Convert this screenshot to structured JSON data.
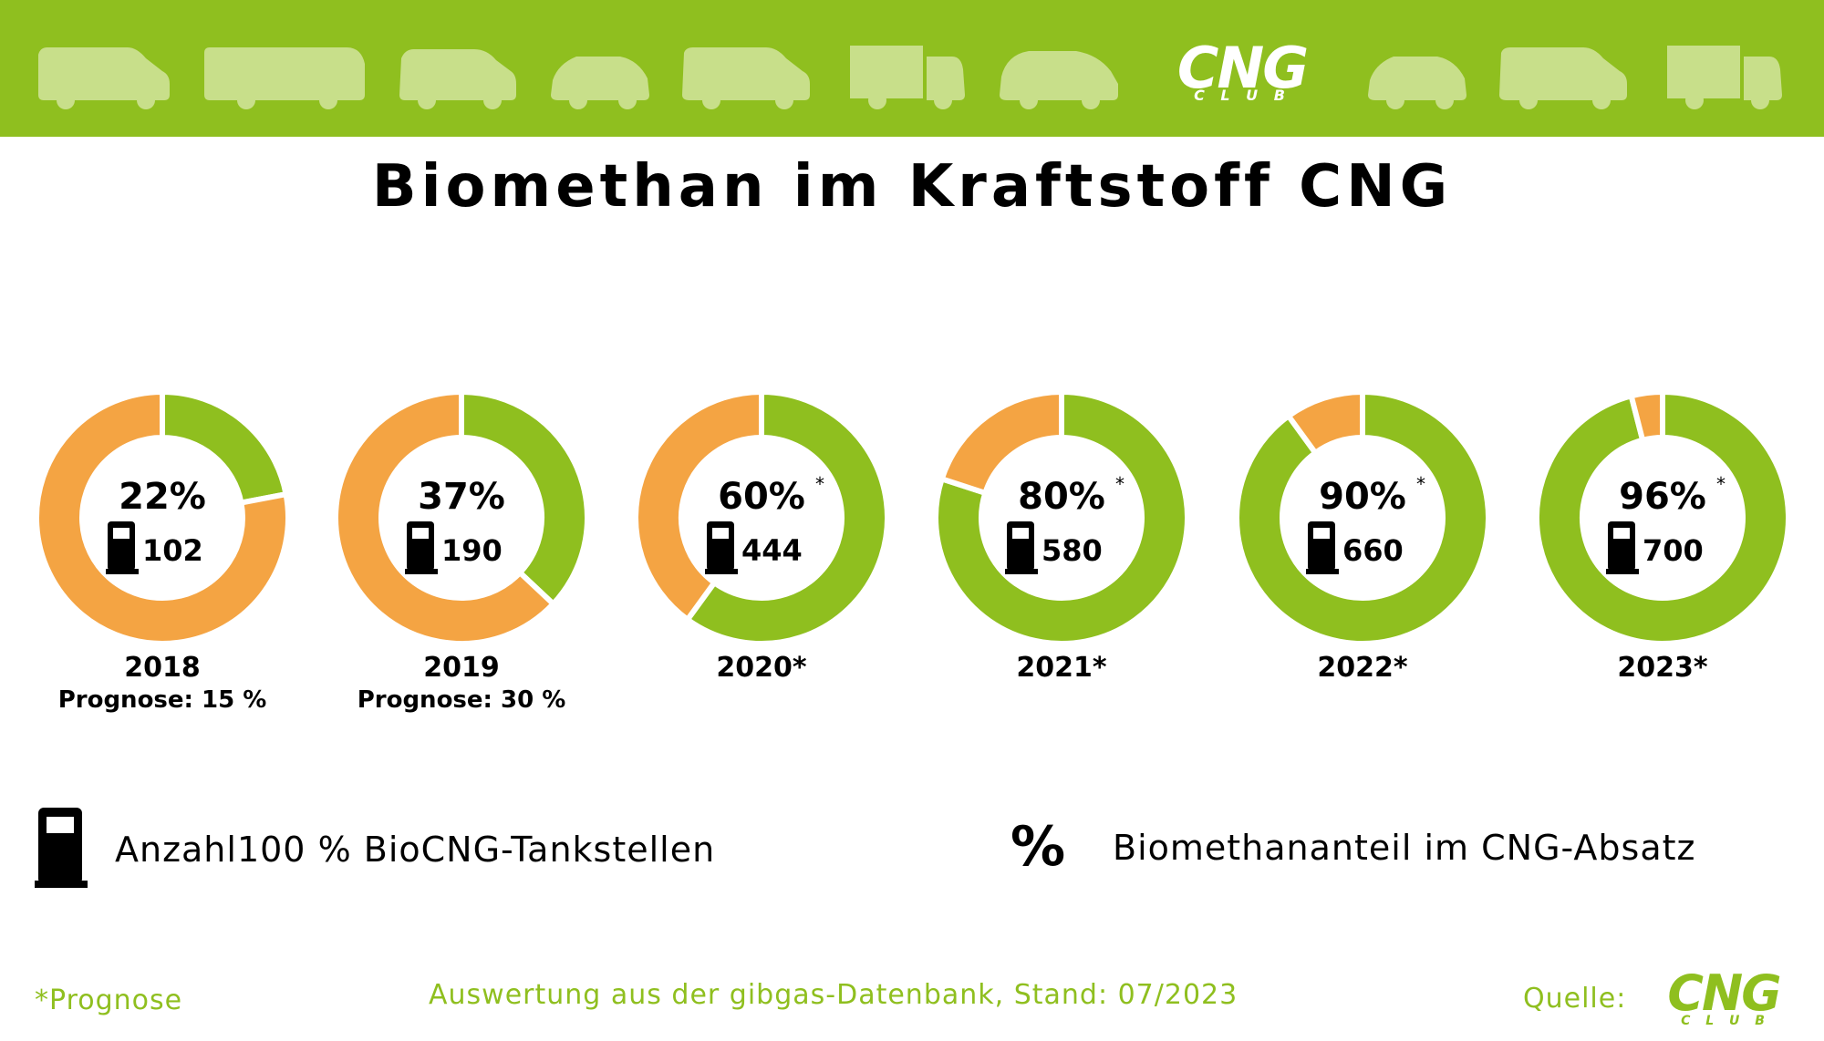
{
  "brand": {
    "banner_color": "#8fbf1f",
    "vehicle_color": "#c8df8a",
    "logo_text": "CNG",
    "logo_sub": "C L U B"
  },
  "title": "Biomethan im Kraftstoff CNG",
  "chart_data": {
    "type": "pie",
    "colors": {
      "biomethane": "#8fbf1f",
      "other": "#f4a443"
    },
    "series": [
      {
        "year": "2018",
        "percent": 22,
        "percent_label": "22%",
        "marker": "",
        "stations": "102",
        "year_label": "2018",
        "note": "Prognose: 15 %"
      },
      {
        "year": "2019",
        "percent": 37,
        "percent_label": "37%",
        "marker": "",
        "stations": "190",
        "year_label": "2019",
        "note": "Prognose: 30 %"
      },
      {
        "year": "2020",
        "percent": 60,
        "percent_label": "60%",
        "marker": "*",
        "stations": "444",
        "year_label": "2020*",
        "note": ""
      },
      {
        "year": "2021",
        "percent": 80,
        "percent_label": "80%",
        "marker": "*",
        "stations": "580",
        "year_label": "2021*",
        "note": ""
      },
      {
        "year": "2022",
        "percent": 90,
        "percent_label": "90%",
        "marker": "*",
        "stations": "660",
        "year_label": "2022*",
        "note": ""
      },
      {
        "year": "2023",
        "percent": 96,
        "percent_label": "96%",
        "marker": "*",
        "stations": "700",
        "year_label": "2023*",
        "note": ""
      }
    ]
  },
  "legend": {
    "stations_label": "Anzahl100 % BioCNG-Tankstellen",
    "percent_symbol": "%",
    "percent_label": "Biomethananteil im CNG-Absatz",
    "icon": "fuel-pump-icon"
  },
  "footer": {
    "forecast_note": "*Prognose",
    "source_note": "Auswertung aus der gibgas-Datenbank, Stand: 07/2023",
    "source_label": "Quelle:",
    "source_logo": "CNG",
    "source_logo_sub": "C L U B"
  }
}
